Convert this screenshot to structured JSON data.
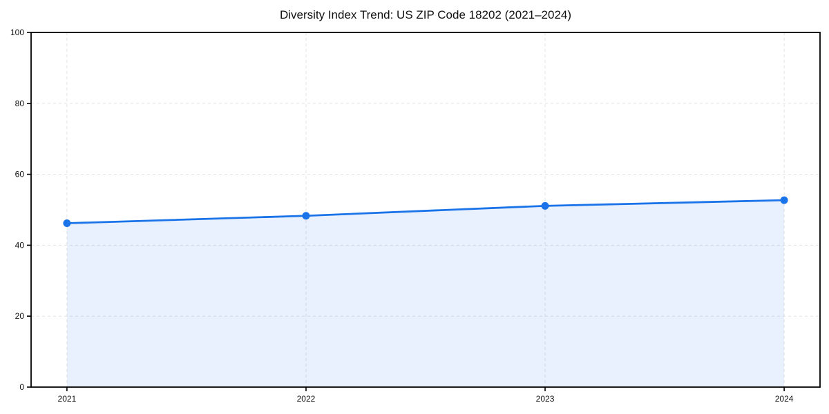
{
  "page": {
    "background": "#ffffff"
  },
  "chart_data": {
    "type": "area",
    "title": "Diversity Index Trend: US ZIP Code 18202 (2021–2024)",
    "xlabel": "",
    "ylabel": "",
    "categories": [
      "2021",
      "2022",
      "2023",
      "2024"
    ],
    "values": [
      46.2,
      48.3,
      51.1,
      52.7
    ],
    "series_name": "Diversity Index",
    "ylim": [
      0,
      100
    ],
    "yticks": [
      0,
      20,
      40,
      60,
      80,
      100
    ],
    "grid": true,
    "grid_style": "dashed",
    "legend": false,
    "marker": "circle",
    "colors": {
      "line": "#1a73e8",
      "fill": "rgba(26,115,232,0.10)",
      "grid": "#e3e3e3",
      "axis": "#000000",
      "text": "#111111",
      "background": "#ffffff"
    }
  }
}
